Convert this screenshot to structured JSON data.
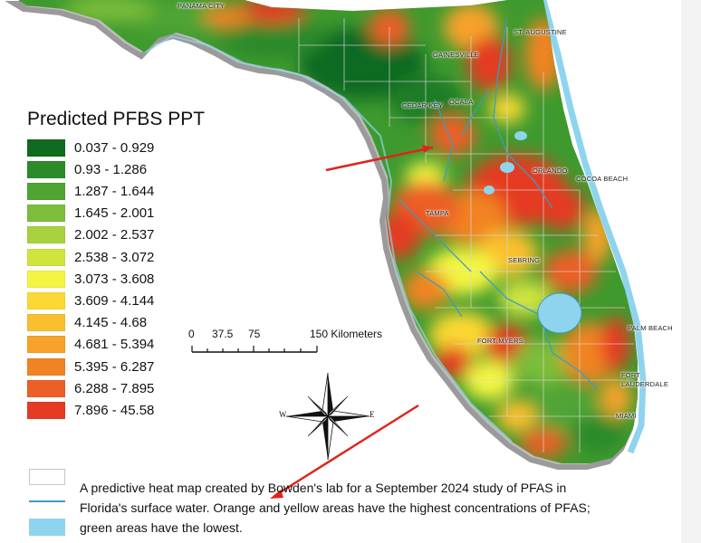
{
  "legend": {
    "title": "Predicted PFBS PPT",
    "classes": [
      {
        "label": "0.037 - 0.929",
        "color": "#0e6b1f"
      },
      {
        "label": "0.93 - 1.286",
        "color": "#2b8a2a"
      },
      {
        "label": "1.287 - 1.644",
        "color": "#4fa434"
      },
      {
        "label": "1.645 - 2.001",
        "color": "#7cbd3a"
      },
      {
        "label": "2.002 - 2.537",
        "color": "#a6d23e"
      },
      {
        "label": "2.538 - 3.072",
        "color": "#cfe43f"
      },
      {
        "label": "3.073 - 3.608",
        "color": "#f4f542"
      },
      {
        "label": "3.609 - 4.144",
        "color": "#fbd833"
      },
      {
        "label": "4.145 - 4.68",
        "color": "#f9bf2f"
      },
      {
        "label": "4.681 - 5.394",
        "color": "#f7a22a"
      },
      {
        "label": "5.395 - 6.287",
        "color": "#f28323"
      },
      {
        "label": "6.288 - 7.895",
        "color": "#ec5f26"
      },
      {
        "label": "7.896 - 45.58",
        "color": "#e53a24"
      }
    ]
  },
  "scale": {
    "ticks": [
      "0",
      "37.5",
      "75",
      "150 Kilometers"
    ]
  },
  "compass": {
    "w": "W",
    "e": "E"
  },
  "cities": [
    {
      "name": "PANAMA CITY"
    },
    {
      "name": "ST. AUGUSTINE"
    },
    {
      "name": "GAINESVILLE"
    },
    {
      "name": "OCALA"
    },
    {
      "name": "CEDAR KEY"
    },
    {
      "name": "ORLANDO"
    },
    {
      "name": "COCOA BEACH"
    },
    {
      "name": "TAMPA"
    },
    {
      "name": "SEBRING"
    },
    {
      "name": "PALM BEACH"
    },
    {
      "name": "FORT MYERS"
    },
    {
      "name": "FORT"
    },
    {
      "name": "LAUDERDALE"
    },
    {
      "name": "MIAMI"
    }
  ],
  "caption": {
    "line1": "A predictive heat map created by Bowden's lab for a September 2024 study of PFAS in",
    "line2": "Florida's surface water. Orange and yellow areas have the highest concentrations of PFAS;",
    "line3": "green areas have the lowest."
  },
  "colors": {
    "arrow": "#e0241b",
    "water": "#8fd4ee",
    "river": "#3a9dc4",
    "coast": "#c9c9c9"
  }
}
